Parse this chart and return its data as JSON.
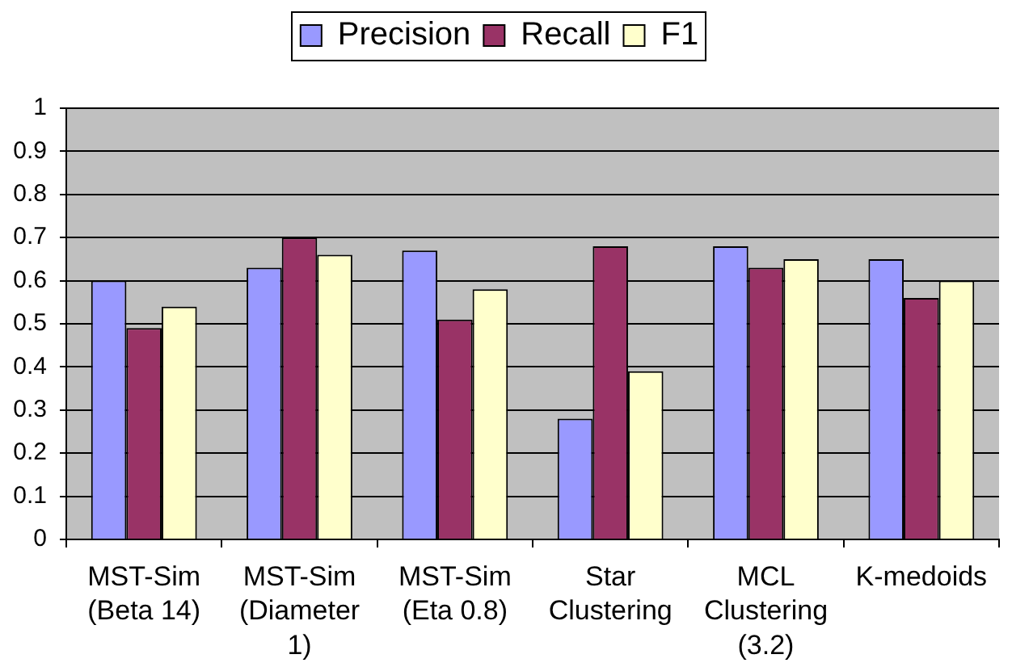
{
  "chart_data": {
    "type": "bar",
    "categories": [
      "MST-Sim (Beta 14)",
      "MST-Sim (Diameter 1)",
      "MST-Sim (Eta 0.8)",
      "Star Clustering",
      "MCL Clustering (3.2)",
      "K-medoids"
    ],
    "series": [
      {
        "name": "Precision",
        "color": "#9999ff",
        "values": [
          0.6,
          0.63,
          0.67,
          0.28,
          0.68,
          0.65
        ]
      },
      {
        "name": "Recall",
        "color": "#993366",
        "values": [
          0.49,
          0.7,
          0.51,
          0.68,
          0.63,
          0.56
        ]
      },
      {
        "name": "F1",
        "color": "#ffffcc",
        "values": [
          0.54,
          0.66,
          0.58,
          0.39,
          0.65,
          0.6
        ]
      }
    ],
    "ylim": [
      0,
      1
    ],
    "yticks": [
      0,
      0.1,
      0.2,
      0.3,
      0.4,
      0.5,
      0.6,
      0.7,
      0.8,
      0.9,
      1
    ],
    "grid": "y",
    "legend": "top"
  }
}
